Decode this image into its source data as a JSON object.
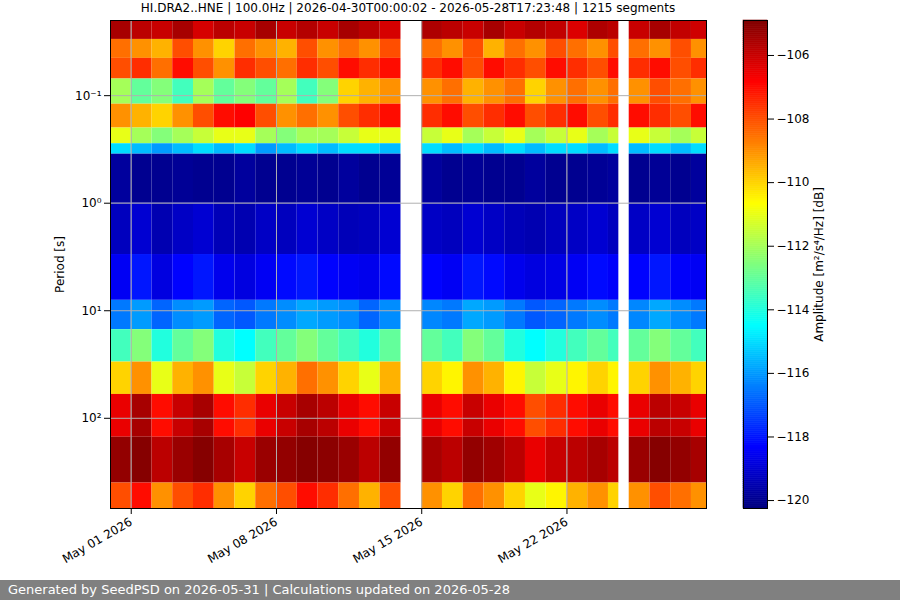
{
  "chart_data": {
    "type": "heatmap",
    "title": "HI.DRA2..HNE | 100.0Hz | 2026-04-30T00:00:02 - 2026-05-28T17:23:48 | 1215 segments",
    "y_label": "Period [s]",
    "colorbar_label": "Amplitude [m²/s⁴/Hz] [dB]",
    "footer": "Generated by SeedPSD on 2026-05-31 | Calculations updated on 2026-05-28",
    "x_edges": [
      "2026-04-30T00:00:02",
      "2026-05-01T00:00:00",
      "2026-05-02T00:00:00",
      "2026-05-03T00:00:00",
      "2026-05-04T00:00:00",
      "2026-05-05T00:00:00",
      "2026-05-06T00:00:00",
      "2026-05-07T00:00:00",
      "2026-05-08T00:00:00",
      "2026-05-09T00:00:00",
      "2026-05-10T00:00:00",
      "2026-05-11T00:00:00",
      "2026-05-12T00:00:00",
      "2026-05-13T00:00:00",
      "2026-05-14T00:00:00",
      "2026-05-15T00:00:00",
      "2026-05-16T00:00:00",
      "2026-05-17T00:00:00",
      "2026-05-18T00:00:00",
      "2026-05-19T00:00:00",
      "2026-05-20T00:00:00",
      "2026-05-21T00:00:00",
      "2026-05-22T00:00:00",
      "2026-05-23T00:00:00",
      "2026-05-24T00:00:00",
      "2026-05-24T12:00:00",
      "2026-05-25T00:00:00",
      "2026-05-26T00:00:00",
      "2026-05-27T00:00:00",
      "2026-05-28T00:00:00",
      "2026-05-28T17:23:48"
    ],
    "y_edges": [
      0.02,
      0.03,
      0.045,
      0.07,
      0.12,
      0.2,
      0.28,
      0.35,
      1,
      3,
      8,
      15,
      30,
      60,
      150,
      400,
      690
    ],
    "values": [
      [
        -105.5,
        -105.8,
        -106,
        -105.5,
        -106.2,
        -105.8,
        -106,
        -105.5,
        -106,
        -105.7,
        -106,
        -105.5,
        -105.8,
        -106.2,
        null,
        -105.6,
        -105.8,
        -106,
        -105.5,
        -106,
        -105.7,
        -105.9,
        -106.3,
        -105.6,
        -105.8,
        null,
        -106,
        -105.5,
        -105.9,
        -106.1
      ],
      [
        -108.5,
        -109,
        -109.5,
        -108,
        -109,
        -110,
        -108.5,
        -109,
        -109.5,
        -108,
        -109,
        -108.5,
        -109,
        -108,
        null,
        -108.5,
        -109,
        -108,
        -109.5,
        -108.5,
        -109,
        -108,
        -108.5,
        -109,
        -108,
        null,
        -108.5,
        -109,
        -108,
        -109
      ],
      [
        -108,
        -107.5,
        -108.5,
        -107,
        -108,
        -109,
        -107.5,
        -108,
        -108.5,
        -107.5,
        -108,
        -107,
        -107.5,
        -107,
        null,
        -107.5,
        -107,
        -108,
        -107,
        -107.5,
        -108,
        -107,
        -107.5,
        -108,
        -107,
        null,
        -107.5,
        -107,
        -108,
        -107.5
      ],
      [
        -112,
        -113,
        -112.5,
        -113.5,
        -112,
        -113,
        -112.5,
        -113,
        -112,
        -113.5,
        -112.5,
        -110,
        -109.5,
        -109,
        null,
        -109,
        -108.5,
        -109.5,
        -109,
        -108.5,
        -110,
        -109,
        -108.5,
        -109,
        -108.5,
        null,
        -109,
        -108,
        -108.5,
        -109
      ],
      [
        -109,
        -109.5,
        -110,
        -109,
        -108,
        -107,
        -106.8,
        -108,
        -109,
        -108.5,
        -109,
        -108,
        -107.5,
        -107,
        null,
        -107.5,
        -107,
        -108,
        -107.5,
        -107,
        -108,
        -107.5,
        -107,
        -108,
        -107.5,
        null,
        -107,
        -107.5,
        -108,
        -107
      ],
      [
        -111,
        -112,
        -112.5,
        -112,
        -111.5,
        -111,
        -111,
        -112,
        -112.5,
        -112,
        -112,
        -111.5,
        -111,
        -111,
        null,
        -111.5,
        -111,
        -112,
        -111.5,
        -111,
        -112,
        -111.5,
        -111,
        -112,
        -111.5,
        null,
        -111,
        -111.5,
        -112,
        -111.5
      ],
      [
        -115,
        -115.5,
        -116,
        -115.5,
        -115,
        -115.5,
        -115,
        -116,
        -115.5,
        -115,
        -115.5,
        -115,
        -115,
        -115.5,
        null,
        -115,
        -115.5,
        -115,
        -115.5,
        -115,
        -115.5,
        -115,
        -115,
        -115.5,
        -115,
        null,
        -115.5,
        -115,
        -115.5,
        -115
      ],
      [
        -119.8,
        -120,
        -120,
        -119.9,
        -120,
        -120,
        -119.8,
        -120,
        -120,
        -119.9,
        -120,
        -119.8,
        -120,
        -119.9,
        null,
        -119.8,
        -120,
        -119.9,
        -120,
        -120,
        -119.8,
        -120,
        -120,
        -119.9,
        -119.8,
        null,
        -120,
        -119.9,
        -120,
        -119.8
      ],
      [
        -119.3,
        -119,
        -119.5,
        -119.2,
        -119,
        -119.4,
        -119.5,
        -119.2,
        -119.3,
        -119,
        -119.2,
        -119.4,
        -119.3,
        -119,
        null,
        -119.2,
        -119.3,
        -119,
        -119.2,
        -119.4,
        -119.5,
        -119.3,
        -119.2,
        -119,
        -119.3,
        null,
        -119.2,
        -119,
        -119.3,
        -119.2
      ],
      [
        -118.5,
        -118,
        -118.8,
        -118.3,
        -118,
        -118.6,
        -118.8,
        -118.5,
        -118.2,
        -118,
        -118.3,
        -118.5,
        -118.6,
        -118.2,
        null,
        -118.3,
        -118.5,
        -118,
        -118.2,
        -118.6,
        -118.8,
        -118.7,
        -118.5,
        -118.2,
        -118.4,
        null,
        -118.3,
        -118,
        -118.4,
        -118.5
      ],
      [
        -116.5,
        -116,
        -116.8,
        -116.2,
        -116,
        -116.8,
        -117,
        -116.5,
        -116.2,
        -115.8,
        -116,
        -116.2,
        -116.8,
        -116.2,
        null,
        -116.3,
        -116.5,
        -115.8,
        -116,
        -116.5,
        -117,
        -116.8,
        -116.5,
        -116.2,
        -116.5,
        null,
        -116.3,
        -115.8,
        -116.2,
        -116.5
      ],
      [
        -113.5,
        -112.5,
        -114,
        -113,
        -112.5,
        -114,
        -114.5,
        -113.5,
        -113,
        -112.5,
        -113,
        -113.5,
        -114,
        -113,
        null,
        -113,
        -113.5,
        -112.5,
        -113,
        -114,
        -114.5,
        -114,
        -113.5,
        -113,
        -113.5,
        null,
        -113,
        -112.5,
        -113,
        -113.5
      ],
      [
        -110,
        -109,
        -111,
        -109.5,
        -109,
        -111,
        -111.5,
        -110,
        -109.5,
        -108.5,
        -109,
        -110,
        -111,
        -109.5,
        null,
        -110,
        -110.5,
        -109,
        -109.5,
        -110.5,
        -111.5,
        -111,
        -110.5,
        -110,
        -110.5,
        null,
        -110,
        -109,
        -109.5,
        -110
      ],
      [
        -106.5,
        -105.5,
        -107,
        -106,
        -105.5,
        -107,
        -107.5,
        -106.5,
        -106,
        -105.5,
        -105.8,
        -106.5,
        -107,
        -106,
        null,
        -106.5,
        -107,
        -106,
        -106.5,
        -107,
        -108,
        -107.5,
        -107,
        -106.5,
        -107,
        null,
        -106.5,
        -105.8,
        -106,
        -106.5
      ],
      [
        -105.2,
        -105,
        -105.8,
        -105.3,
        -105,
        -105.5,
        -106,
        -105.3,
        -105.2,
        -105,
        -105.1,
        -105.3,
        -105.8,
        -105.2,
        null,
        -105.5,
        -105.8,
        -105.2,
        -105.4,
        -105.8,
        -106.5,
        -106,
        -105.8,
        -105.5,
        -105.8,
        null,
        -105.3,
        -105,
        -105.2,
        -105.5
      ],
      [
        -108,
        -107,
        -109,
        -108,
        -107.5,
        -109,
        -110,
        -108.5,
        -108,
        -107,
        -107.5,
        -108.5,
        -109.5,
        -108,
        null,
        -109,
        -110,
        -108.5,
        -109,
        -110,
        -111,
        -110.5,
        -109.5,
        -109,
        -110,
        null,
        -109,
        -108,
        -108.5,
        -109
      ]
    ],
    "xlim": [
      "2026-04-30T00:00:02",
      "2026-05-28T17:23:48"
    ],
    "xticks": [
      {
        "value": "2026-05-01T00:00:00",
        "label": "May 01 2026"
      },
      {
        "value": "2026-05-08T00:00:00",
        "label": "May 08 2026"
      },
      {
        "value": "2026-05-15T00:00:00",
        "label": "May 15 2026"
      },
      {
        "value": "2026-05-22T00:00:00",
        "label": "May 22 2026"
      }
    ],
    "ylim": [
      0.02,
      690
    ],
    "yticks": [
      {
        "value": 0.1,
        "label": "10⁻¹"
      },
      {
        "value": 1,
        "label": "10⁰"
      },
      {
        "value": 10,
        "label": "10¹"
      },
      {
        "value": 100,
        "label": "10²"
      }
    ],
    "log": "y",
    "grid": true,
    "colorbar_range": [
      -120.25,
      -104.9
    ],
    "colorbar_ticks": [
      -106,
      -108,
      -110,
      -112,
      -114,
      -116,
      -118,
      -120
    ]
  }
}
